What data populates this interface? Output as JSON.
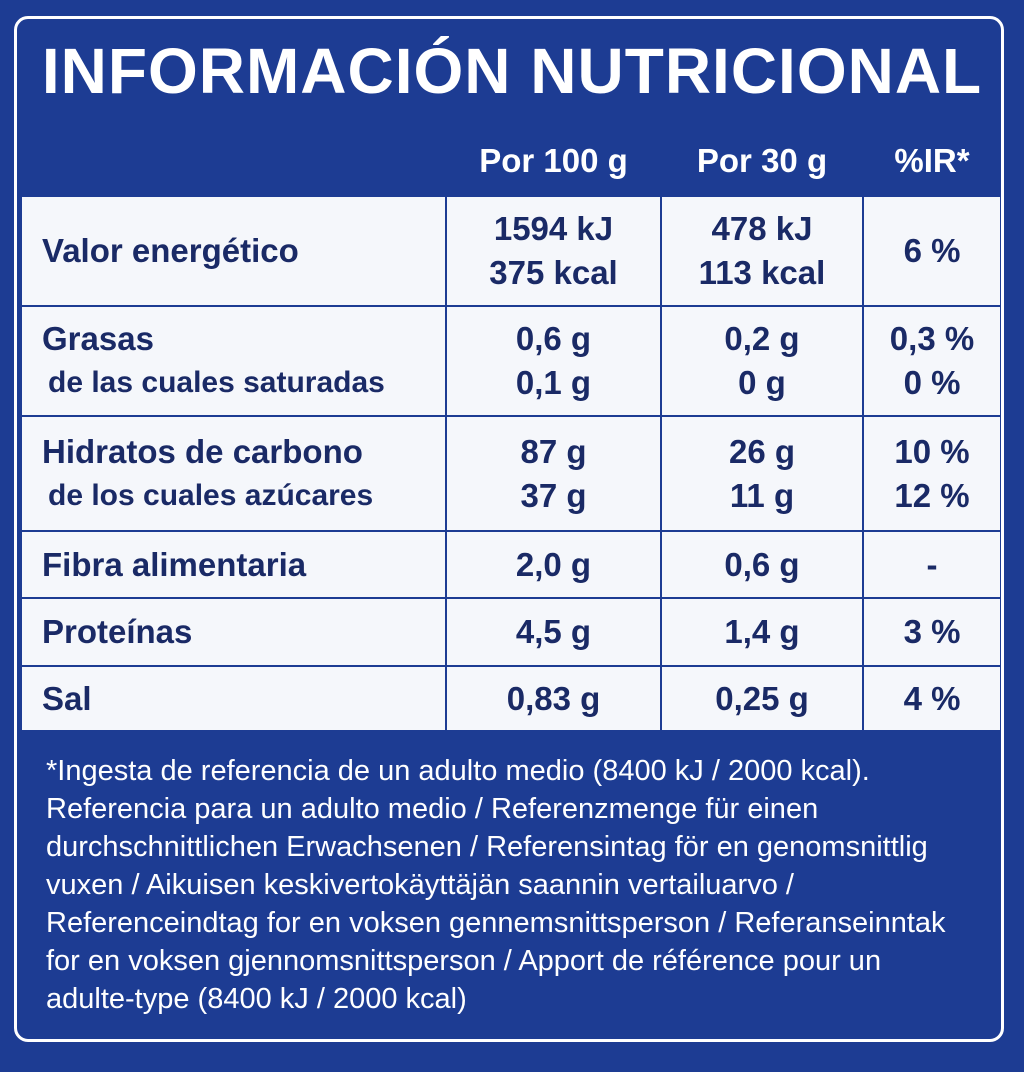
{
  "title": "INFORMACIÓN NUTRICIONAL",
  "table": {
    "header": [
      "Por 100 g",
      "Por 30 g",
      "%IR*"
    ],
    "rows": [
      [
        [
          "Valor energético"
        ],
        [
          "1594 kJ",
          "375 kcal"
        ],
        [
          "478 kJ",
          "113 kcal"
        ],
        [
          "6 %"
        ]
      ],
      [
        [
          "Grasas",
          "de las cuales saturadas"
        ],
        [
          "0,6 g",
          "0,1 g"
        ],
        [
          "0,2 g",
          "0 g"
        ],
        [
          "0,3 %",
          "0 %"
        ]
      ],
      [
        [
          "Hidratos de carbono",
          "de los cuales azúcares"
        ],
        [
          "87 g",
          "37 g"
        ],
        [
          "26 g",
          "11 g"
        ],
        [
          "10 %",
          "12 %"
        ]
      ],
      [
        [
          "Fibra alimentaria"
        ],
        [
          "2,0 g"
        ],
        [
          "0,6 g"
        ],
        [
          "-"
        ]
      ],
      [
        [
          "Proteínas"
        ],
        [
          "4,5 g"
        ],
        [
          "1,4 g"
        ],
        [
          "3 %"
        ]
      ],
      [
        [
          "Sal"
        ],
        [
          "0,83 g"
        ],
        [
          "0,25 g"
        ],
        [
          "4 %"
        ]
      ]
    ]
  },
  "footnote": [
    "*Ingesta de referencia de un adulto medio (8400 kJ / 2000 kcal).",
    "Referencia para un adulto medio / Referenzmenge für einen",
    "durchschnittlichen Erwachsenen / Referensintag för en genomsnittlig",
    "vuxen / Aikuisen keskivertokäyttäjän saannin vertailuarvo /",
    "Referenceindtag for en voksen gennemsnittsperson / Referanseinntak",
    "for en voksen gjennomsnittsperson / Apport de référence pour un",
    "adulte-type (8400 kJ / 2000 kcal)"
  ]
}
